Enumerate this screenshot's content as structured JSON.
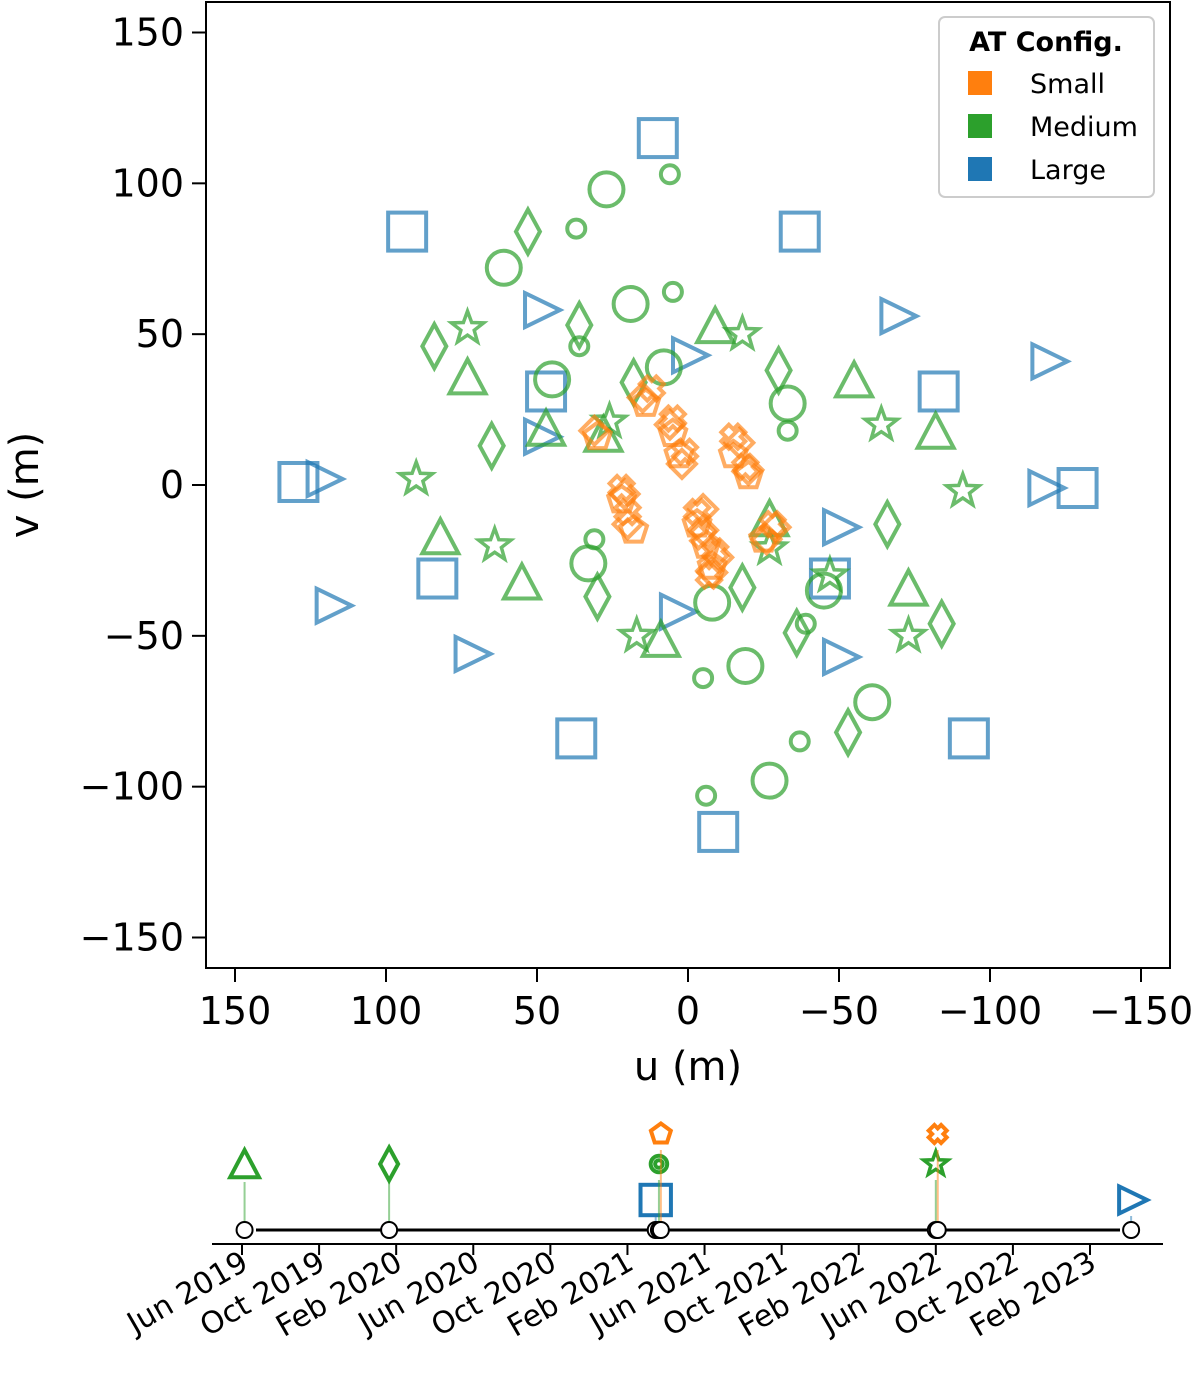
{
  "colors": {
    "small": "#ff7f0e",
    "medium": "#2ca02c",
    "large": "#1f77b4"
  },
  "legend": {
    "title": "AT Config.",
    "entries": [
      {
        "label": "Small",
        "color": "#ff7f0e"
      },
      {
        "label": "Medium",
        "color": "#2ca02c"
      },
      {
        "label": "Large",
        "color": "#1f77b4"
      }
    ]
  },
  "chart_data": [
    {
      "type": "scatter",
      "title": "",
      "xlabel": "u (m)",
      "ylabel": "v (m)",
      "xlim": [
        160,
        -160
      ],
      "ylim": [
        -160,
        160
      ],
      "xticks": [
        150,
        100,
        50,
        0,
        -50,
        -100,
        -150
      ],
      "xtick_labels": [
        "150",
        "100",
        "50",
        "0",
        "−50",
        "−100",
        "−150"
      ],
      "yticks": [
        150,
        100,
        50,
        0,
        -50,
        -100,
        -150
      ],
      "ytick_labels": [
        "150",
        "100",
        "50",
        "0",
        "−50",
        "−100",
        "−150"
      ],
      "grid": false,
      "legend_position": "top-right",
      "series": [
        {
          "name": "Large (square)",
          "config": "Large",
          "marker": "square",
          "points": [
            [
              10,
              115
            ],
            [
              -10,
              -115
            ],
            [
              93,
              84
            ],
            [
              -93,
              -84
            ],
            [
              -37,
              84
            ],
            [
              37,
              -84
            ],
            [
              129,
              1
            ],
            [
              -129,
              -1
            ],
            [
              83,
              -31
            ],
            [
              -83,
              31
            ],
            [
              47,
              31
            ],
            [
              -47,
              -31
            ]
          ]
        },
        {
          "name": "Large (triangle-right)",
          "config": "Large",
          "marker": "triangle-right",
          "points": [
            [
              49,
              58
            ],
            [
              -69,
              56
            ],
            [
              -119,
              41
            ],
            [
              121,
              2
            ],
            [
              -118,
              -1
            ],
            [
              118,
              -40
            ],
            [
              72,
              -56
            ],
            [
              -50,
              -57
            ],
            [
              49,
              16
            ],
            [
              -50,
              -14
            ],
            [
              0,
              43
            ],
            [
              4,
              -42
            ]
          ]
        },
        {
          "name": "Medium (circle)",
          "config": "Medium",
          "marker": "circle",
          "points": [
            [
              27,
              98
            ],
            [
              -27,
              -98
            ],
            [
              61,
              72
            ],
            [
              -61,
              -72
            ],
            [
              19,
              60
            ],
            [
              -19,
              -60
            ],
            [
              45,
              35
            ],
            [
              -45,
              -35
            ],
            [
              8,
              39
            ],
            [
              -8,
              -39
            ],
            [
              -33,
              27
            ],
            [
              33,
              -26
            ]
          ]
        },
        {
          "name": "Medium (small circle)",
          "config": "Medium",
          "marker": "small-circle",
          "points": [
            [
              6,
              103
            ],
            [
              -6,
              -103
            ],
            [
              37,
              85
            ],
            [
              -37,
              -85
            ],
            [
              5,
              64
            ],
            [
              -5,
              -64
            ],
            [
              36,
              46
            ],
            [
              -33,
              18
            ],
            [
              -39,
              -46
            ],
            [
              31,
              -18
            ]
          ]
        },
        {
          "name": "Medium (diamond)",
          "config": "Medium",
          "marker": "diamond",
          "points": [
            [
              53,
              84
            ],
            [
              -53,
              -82
            ],
            [
              84,
              46
            ],
            [
              -84,
              -46
            ],
            [
              36,
              53
            ],
            [
              -30,
              38
            ],
            [
              65,
              13
            ],
            [
              -66,
              -13
            ],
            [
              30,
              -37
            ],
            [
              -36,
              -49
            ],
            [
              18,
              34
            ],
            [
              -18,
              -34
            ]
          ]
        },
        {
          "name": "Medium (triangle-up)",
          "config": "Medium",
          "marker": "triangle-up",
          "points": [
            [
              -9,
              52
            ],
            [
              9,
              -52
            ],
            [
              -55,
              34
            ],
            [
              55,
              -33
            ],
            [
              73,
              35
            ],
            [
              -73,
              -35
            ],
            [
              -82,
              17
            ],
            [
              82,
              -18
            ],
            [
              47,
              18
            ],
            [
              -27,
              -12
            ],
            [
              28,
              16
            ]
          ]
        },
        {
          "name": "Medium (star)",
          "config": "Medium",
          "marker": "star",
          "points": [
            [
              73,
              52
            ],
            [
              -18,
              50
            ],
            [
              -64,
              20
            ],
            [
              90,
              2
            ],
            [
              -91,
              -2
            ],
            [
              64,
              -20
            ],
            [
              17,
              -50
            ],
            [
              -73,
              -50
            ],
            [
              26,
              21
            ],
            [
              -27,
              -21
            ],
            [
              -47,
              -30
            ]
          ]
        },
        {
          "name": "Small (diamond-outline)",
          "config": "Small",
          "marker": "small-diamond",
          "points": [
            [
              31,
              18
            ],
            [
              15,
              29
            ],
            [
              6,
              20
            ],
            [
              -17,
              14
            ],
            [
              -20,
              5
            ],
            [
              21,
              -3
            ],
            [
              -5,
              -8
            ],
            [
              20,
              -13
            ],
            [
              -29,
              -14
            ],
            [
              -10,
              -24
            ],
            [
              -8,
              -29
            ],
            [
              -26,
              -18
            ],
            [
              2,
              7
            ],
            [
              -5,
              -15
            ]
          ]
        },
        {
          "name": "Small (pentagon)",
          "config": "Small",
          "marker": "pentagon",
          "points": [
            [
              30,
              16
            ],
            [
              14,
              27
            ],
            [
              5,
              17
            ],
            [
              -15,
              10
            ],
            [
              -20,
              3
            ],
            [
              22,
              -5
            ],
            [
              -3,
              -13
            ],
            [
              18,
              -15
            ],
            [
              -25,
              -18
            ],
            [
              -8,
              -27
            ],
            [
              3,
              10
            ],
            [
              -6,
              -20
            ]
          ]
        },
        {
          "name": "Small (x-cross)",
          "config": "Small",
          "marker": "x-cross",
          "points": [
            [
              12,
              32
            ],
            [
              5,
              22
            ],
            [
              -15,
              16
            ],
            [
              -19,
              6
            ],
            [
              22,
              -1
            ],
            [
              -3,
              -9
            ],
            [
              20,
              -9
            ],
            [
              -28,
              -13
            ],
            [
              -9,
              -22
            ],
            [
              -7,
              -30
            ],
            [
              1,
              11
            ],
            [
              -5,
              -17
            ]
          ]
        }
      ]
    },
    {
      "type": "timeline",
      "title": "",
      "tick_labels": [
        "Jun 2019",
        "Oct 2019",
        "Feb 2020",
        "Jun 2020",
        "Oct 2020",
        "Feb 2021",
        "Jun 2021",
        "Oct 2021",
        "Feb 2022",
        "Jun 2022",
        "Oct 2022",
        "Feb 2023"
      ],
      "start_month": "2019-06",
      "end_month": "2023-02",
      "events": [
        {
          "date": "2019-06-05",
          "markers": [
            {
              "config": "Medium",
              "marker": "triangle-up"
            }
          ]
        },
        {
          "date": "2020-01-20",
          "markers": [
            {
              "config": "Medium",
              "marker": "diamond"
            }
          ]
        },
        {
          "date": "2021-03-15",
          "markers": [
            {
              "config": "Large",
              "marker": "square"
            }
          ]
        },
        {
          "date": "2021-03-20",
          "markers": [
            {
              "config": "Medium",
              "marker": "double-circle"
            }
          ]
        },
        {
          "date": "2021-03-23",
          "markers": [
            {
              "config": "Small",
              "marker": "pentagon"
            }
          ]
        },
        {
          "date": "2022-06-01",
          "markers": [
            {
              "config": "Medium",
              "marker": "star"
            }
          ]
        },
        {
          "date": "2022-06-04",
          "markers": [
            {
              "config": "Small",
              "marker": "x-cross"
            }
          ]
        },
        {
          "date": "2023-04-05",
          "markers": [
            {
              "config": "Large",
              "marker": "triangle-right"
            }
          ]
        }
      ]
    }
  ]
}
